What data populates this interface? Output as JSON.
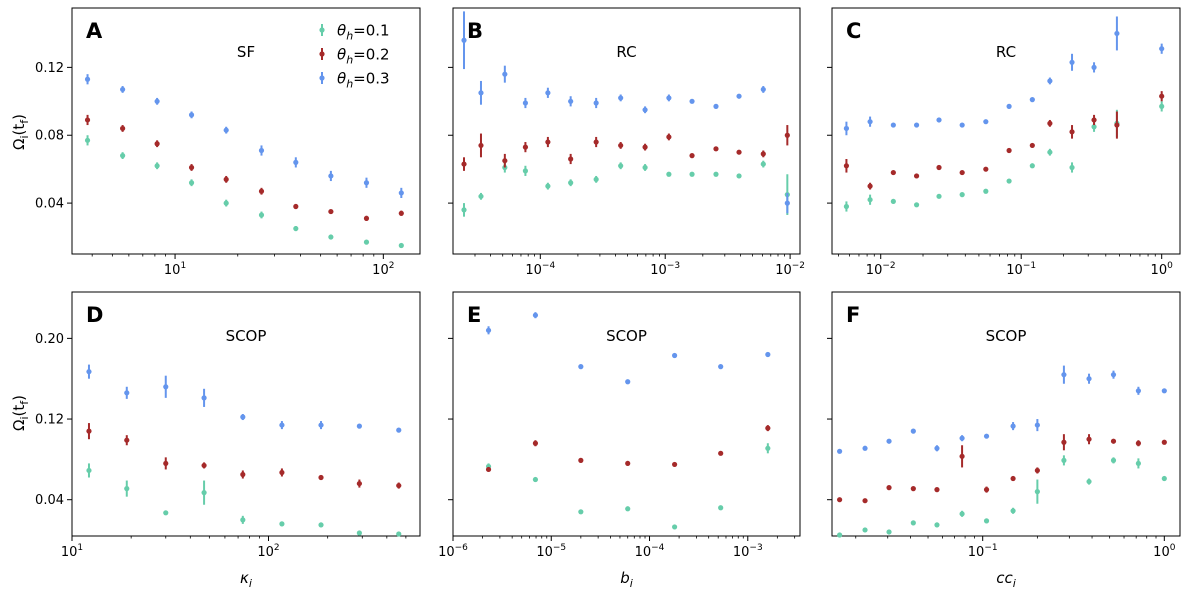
{
  "colors": {
    "theta_0.1": "#66cdaa",
    "theta_0.2": "#a52a2a",
    "theta_0.3": "#6495ed"
  },
  "y_axis_label": "Ω_i(t_f)",
  "legend": [
    {
      "key": "theta_0.1",
      "sym": "θ",
      "sub": "h",
      "val": "=0.1"
    },
    {
      "key": "theta_0.2",
      "sym": "θ",
      "sub": "h",
      "val": "=0.2"
    },
    {
      "key": "theta_0.3",
      "sym": "θ",
      "sub": "h",
      "val": "=0.3"
    }
  ],
  "x_axis_labels": [
    {
      "sym": "κ",
      "sub": "i"
    },
    {
      "sym": "b",
      "sub": "i"
    },
    {
      "sym": "cc",
      "sub": "i"
    }
  ],
  "chart_data": [
    {
      "type": "scatter",
      "letter": "A",
      "title": "SF",
      "xscale": "log",
      "xlim": [
        3.2,
        150
      ],
      "ylim": [
        0.01,
        0.155
      ],
      "yticks": [
        0.04,
        0.08,
        0.12
      ],
      "ytick_labels": [
        "0.04",
        "0.08",
        "0.12"
      ],
      "xticks": [
        10,
        100
      ],
      "xtick_labels": [
        "10^1",
        "10^2"
      ],
      "show_yticklabels": true,
      "show_xticklabels": true,
      "legend": true,
      "series": [
        {
          "key": "theta_0.1",
          "x": [
            3.8,
            5.6,
            8.2,
            12,
            17.6,
            26,
            38,
            56,
            83,
            122
          ],
          "y": [
            0.077,
            0.068,
            0.062,
            0.052,
            0.04,
            0.033,
            0.025,
            0.02,
            0.017,
            0.015
          ],
          "err": [
            0.003,
            0.002,
            0.002,
            0.002,
            0.002,
            0.002,
            0.0015,
            0.001,
            0.001,
            0.001
          ]
        },
        {
          "key": "theta_0.2",
          "x": [
            3.8,
            5.6,
            8.2,
            12,
            17.6,
            26,
            38,
            56,
            83,
            122
          ],
          "y": [
            0.089,
            0.084,
            0.075,
            0.061,
            0.054,
            0.047,
            0.038,
            0.035,
            0.031,
            0.034
          ],
          "err": [
            0.003,
            0.002,
            0.002,
            0.002,
            0.002,
            0.002,
            0.0015,
            0.001,
            0.0015,
            0.0015
          ]
        },
        {
          "key": "theta_0.3",
          "x": [
            3.8,
            5.6,
            8.2,
            12,
            17.6,
            26,
            38,
            56,
            83,
            122
          ],
          "y": [
            0.113,
            0.107,
            0.1,
            0.092,
            0.083,
            0.071,
            0.064,
            0.056,
            0.052,
            0.046
          ],
          "err": [
            0.003,
            0.002,
            0.002,
            0.002,
            0.002,
            0.003,
            0.003,
            0.003,
            0.003,
            0.003
          ]
        }
      ]
    },
    {
      "type": "scatter",
      "letter": "B",
      "title": "RC",
      "xscale": "log",
      "xlim": [
        2e-05,
        0.012
      ],
      "ylim": [
        0.01,
        0.155
      ],
      "yticks": [
        0.04,
        0.08,
        0.12
      ],
      "ytick_labels": [
        "",
        "",
        ""
      ],
      "xticks": [
        0.0001,
        0.001,
        0.01
      ],
      "xtick_labels": [
        "10^-4",
        "10^-3",
        "10^-2"
      ],
      "show_yticklabels": false,
      "show_xticklabels": true,
      "legend": false,
      "series": [
        {
          "key": "theta_0.1",
          "x": [
            2.45e-05,
            3.35e-05,
            5.2e-05,
            7.6e-05,
            0.000115,
            0.000175,
            0.00028,
            0.00044,
            0.00069,
            0.00107,
            0.00164,
            0.00255,
            0.0039,
            0.0061,
            0.0095
          ],
          "y": [
            0.036,
            0.044,
            0.061,
            0.059,
            0.05,
            0.052,
            0.054,
            0.062,
            0.061,
            0.057,
            0.057,
            0.057,
            0.056,
            0.063,
            0.045
          ],
          "err": [
            0.004,
            0.002,
            0.003,
            0.003,
            0.002,
            0.002,
            0.002,
            0.002,
            0.002,
            0.001,
            0.001,
            0.001,
            0.001,
            0.002,
            0.012
          ]
        },
        {
          "key": "theta_0.2",
          "x": [
            2.45e-05,
            3.35e-05,
            5.2e-05,
            7.6e-05,
            0.000115,
            0.000175,
            0.00028,
            0.00044,
            0.00069,
            0.00107,
            0.00164,
            0.00255,
            0.0039,
            0.0061,
            0.0095
          ],
          "y": [
            0.063,
            0.074,
            0.065,
            0.073,
            0.076,
            0.066,
            0.076,
            0.074,
            0.073,
            0.079,
            0.068,
            0.072,
            0.07,
            0.069,
            0.08
          ],
          "err": [
            0.004,
            0.007,
            0.004,
            0.003,
            0.003,
            0.003,
            0.003,
            0.002,
            0.002,
            0.002,
            0.001,
            0.001,
            0.001,
            0.002,
            0.006
          ]
        },
        {
          "key": "theta_0.3",
          "x": [
            2.45e-05,
            3.35e-05,
            5.2e-05,
            7.6e-05,
            0.000115,
            0.000175,
            0.00028,
            0.00044,
            0.00069,
            0.00107,
            0.00164,
            0.00255,
            0.0039,
            0.0061,
            0.0095
          ],
          "y": [
            0.136,
            0.105,
            0.116,
            0.099,
            0.105,
            0.1,
            0.099,
            0.102,
            0.095,
            0.102,
            0.1,
            0.097,
            0.103,
            0.107,
            0.04
          ],
          "err": [
            0.017,
            0.007,
            0.005,
            0.003,
            0.003,
            0.003,
            0.003,
            0.002,
            0.002,
            0.002,
            0.001,
            0.001,
            0.001,
            0.002,
            0.006
          ]
        }
      ]
    },
    {
      "type": "scatter",
      "letter": "C",
      "title": "RC",
      "xscale": "log",
      "xlim": [
        0.0045,
        1.35
      ],
      "ylim": [
        0.01,
        0.155
      ],
      "yticks": [
        0.04,
        0.08,
        0.12
      ],
      "ytick_labels": [
        "",
        "",
        ""
      ],
      "xticks": [
        0.01,
        0.1,
        1
      ],
      "xtick_labels": [
        "10^-2",
        "10^-1",
        "10^0"
      ],
      "show_yticklabels": false,
      "show_xticklabels": true,
      "legend": false,
      "series": [
        {
          "key": "theta_0.1",
          "x": [
            0.0057,
            0.0084,
            0.0123,
            0.018,
            0.026,
            0.038,
            0.056,
            0.082,
            0.12,
            0.16,
            0.23,
            0.33,
            0.48,
            1.0
          ],
          "y": [
            0.038,
            0.042,
            0.041,
            0.039,
            0.044,
            0.045,
            0.047,
            0.053,
            0.062,
            0.07,
            0.061,
            0.085,
            0.087,
            0.097
          ],
          "err": [
            0.003,
            0.003,
            0.001,
            0.001,
            0.001,
            0.001,
            0.001,
            0.001,
            0.001,
            0.002,
            0.003,
            0.003,
            0.008,
            0.003
          ]
        },
        {
          "key": "theta_0.2",
          "x": [
            0.0057,
            0.0084,
            0.0123,
            0.018,
            0.026,
            0.038,
            0.056,
            0.082,
            0.12,
            0.16,
            0.23,
            0.33,
            0.48,
            1.0
          ],
          "y": [
            0.062,
            0.05,
            0.058,
            0.056,
            0.061,
            0.058,
            0.06,
            0.071,
            0.074,
            0.087,
            0.082,
            0.089,
            0.086,
            0.103
          ],
          "err": [
            0.004,
            0.002,
            0.001,
            0.001,
            0.001,
            0.001,
            0.001,
            0.001,
            0.001,
            0.002,
            0.004,
            0.003,
            0.008,
            0.003
          ]
        },
        {
          "key": "theta_0.3",
          "x": [
            0.0057,
            0.0084,
            0.0123,
            0.018,
            0.026,
            0.038,
            0.056,
            0.082,
            0.12,
            0.16,
            0.23,
            0.33,
            0.48,
            1.0
          ],
          "y": [
            0.084,
            0.088,
            0.086,
            0.086,
            0.089,
            0.086,
            0.088,
            0.097,
            0.101,
            0.112,
            0.123,
            0.12,
            0.14,
            0.131
          ],
          "err": [
            0.004,
            0.003,
            0.001,
            0.001,
            0.001,
            0.001,
            0.001,
            0.001,
            0.001,
            0.002,
            0.005,
            0.003,
            0.01,
            0.003
          ]
        }
      ]
    },
    {
      "type": "scatter",
      "letter": "D",
      "title": "SCOP",
      "xscale": "log",
      "xlim": [
        10,
        590
      ],
      "ylim": [
        0.004,
        0.246
      ],
      "yticks": [
        0.04,
        0.12,
        0.2
      ],
      "ytick_labels": [
        "0.04",
        "0.12",
        "0.20"
      ],
      "xticks": [
        10,
        100
      ],
      "xtick_labels": [
        "10^1",
        "10^2"
      ],
      "show_yticklabels": true,
      "show_xticklabels": true,
      "legend": false,
      "series": [
        {
          "key": "theta_0.1",
          "x": [
            12.2,
            19,
            30,
            47,
            74,
            117,
            185,
            290,
            460
          ],
          "y": [
            0.069,
            0.051,
            0.027,
            0.047,
            0.02,
            0.016,
            0.015,
            0.007,
            0.006
          ],
          "err": [
            0.007,
            0.008,
            0.002,
            0.012,
            0.004,
            0.002,
            0.002,
            0.002,
            0.002
          ]
        },
        {
          "key": "theta_0.2",
          "x": [
            12.2,
            19,
            30,
            47,
            74,
            117,
            185,
            290,
            460
          ],
          "y": [
            0.108,
            0.099,
            0.076,
            0.074,
            0.065,
            0.067,
            0.062,
            0.056,
            0.054
          ],
          "err": [
            0.008,
            0.005,
            0.006,
            0.003,
            0.004,
            0.004,
            0.002,
            0.004,
            0.003
          ]
        },
        {
          "key": "theta_0.3",
          "x": [
            12.2,
            19,
            30,
            47,
            74,
            117,
            185,
            290,
            460
          ],
          "y": [
            0.167,
            0.146,
            0.152,
            0.141,
            0.122,
            0.114,
            0.114,
            0.113,
            0.109
          ],
          "err": [
            0.007,
            0.006,
            0.011,
            0.009,
            0.003,
            0.004,
            0.004,
            0.002,
            0.002
          ]
        }
      ]
    },
    {
      "type": "scatter",
      "letter": "E",
      "title": "SCOP",
      "xscale": "log",
      "xlim": [
        1e-06,
        0.0034
      ],
      "ylim": [
        0.004,
        0.246
      ],
      "yticks": [
        0.04,
        0.12,
        0.2
      ],
      "ytick_labels": [
        "",
        "",
        ""
      ],
      "xticks": [
        1e-06,
        1e-05,
        0.0001,
        0.001
      ],
      "xtick_labels": [
        "10^-6",
        "10^-5",
        "10^-4",
        "10^-3"
      ],
      "show_yticklabels": false,
      "show_xticklabels": true,
      "legend": false,
      "series": [
        {
          "key": "theta_0.1",
          "x": [
            2.3e-06,
            6.9e-06,
            2e-05,
            6e-05,
            0.00018,
            0.00053,
            0.0016
          ],
          "y": [
            0.073,
            0.06,
            0.028,
            0.031,
            0.013,
            0.032,
            0.091
          ],
          "err": [
            0.003,
            0.002,
            0.002,
            0.002,
            0.001,
            0.001,
            0.005
          ]
        },
        {
          "key": "theta_0.2",
          "x": [
            2.3e-06,
            6.9e-06,
            2e-05,
            6e-05,
            0.00018,
            0.00053,
            0.0016
          ],
          "y": [
            0.07,
            0.096,
            0.079,
            0.076,
            0.075,
            0.086,
            0.111
          ],
          "err": [
            0.002,
            0.003,
            0.001,
            0.001,
            0.001,
            0.002,
            0.003
          ]
        },
        {
          "key": "theta_0.3",
          "x": [
            2.3e-06,
            6.9e-06,
            2e-05,
            6e-05,
            0.00018,
            0.00053,
            0.0016
          ],
          "y": [
            0.208,
            0.223,
            0.172,
            0.157,
            0.183,
            0.172,
            0.184
          ],
          "err": [
            0.004,
            0.003,
            0.002,
            0.001,
            0.002,
            0.002,
            0.001
          ]
        }
      ]
    },
    {
      "type": "scatter",
      "letter": "F",
      "title": "SCOP",
      "xscale": "log",
      "xlim": [
        0.0148,
        1.22
      ],
      "ylim": [
        0.004,
        0.246
      ],
      "yticks": [
        0.04,
        0.12,
        0.2
      ],
      "ytick_labels": [
        "",
        "",
        ""
      ],
      "xticks": [
        0.1,
        1
      ],
      "xtick_labels": [
        "10^-1",
        "10^0"
      ],
      "show_yticklabels": false,
      "show_xticklabels": true,
      "legend": false,
      "series": [
        {
          "key": "theta_0.1",
          "x": [
            0.0163,
            0.0225,
            0.0305,
            0.0415,
            0.056,
            0.077,
            0.105,
            0.147,
            0.2,
            0.28,
            0.385,
            0.525,
            0.72,
            1.0
          ],
          "y": [
            0.005,
            0.01,
            0.008,
            0.017,
            0.015,
            0.026,
            0.019,
            0.029,
            0.048,
            0.079,
            0.058,
            0.079,
            0.076,
            0.061
          ],
          "err": [
            0.001,
            0.001,
            0.001,
            0.001,
            0.001,
            0.003,
            0.001,
            0.003,
            0.012,
            0.005,
            0.003,
            0.003,
            0.005,
            0.002
          ]
        },
        {
          "key": "theta_0.2",
          "x": [
            0.0163,
            0.0225,
            0.0305,
            0.0415,
            0.056,
            0.077,
            0.105,
            0.147,
            0.2,
            0.28,
            0.385,
            0.525,
            0.72,
            1.0
          ],
          "y": [
            0.04,
            0.039,
            0.052,
            0.051,
            0.05,
            0.083,
            0.05,
            0.061,
            0.069,
            0.097,
            0.1,
            0.098,
            0.096,
            0.097
          ],
          "err": [
            0.001,
            0.001,
            0.001,
            0.001,
            0.001,
            0.011,
            0.003,
            0.002,
            0.003,
            0.008,
            0.005,
            0.002,
            0.003,
            0.002
          ]
        },
        {
          "key": "theta_0.3",
          "x": [
            0.0163,
            0.0225,
            0.0305,
            0.0415,
            0.056,
            0.077,
            0.105,
            0.147,
            0.2,
            0.28,
            0.385,
            0.525,
            0.72,
            1.0
          ],
          "y": [
            0.088,
            0.091,
            0.098,
            0.108,
            0.091,
            0.101,
            0.103,
            0.113,
            0.114,
            0.164,
            0.16,
            0.164,
            0.148,
            0.148
          ],
          "err": [
            0.001,
            0.001,
            0.001,
            0.001,
            0.003,
            0.003,
            0.002,
            0.004,
            0.006,
            0.009,
            0.005,
            0.004,
            0.004,
            0.002
          ]
        }
      ]
    }
  ]
}
